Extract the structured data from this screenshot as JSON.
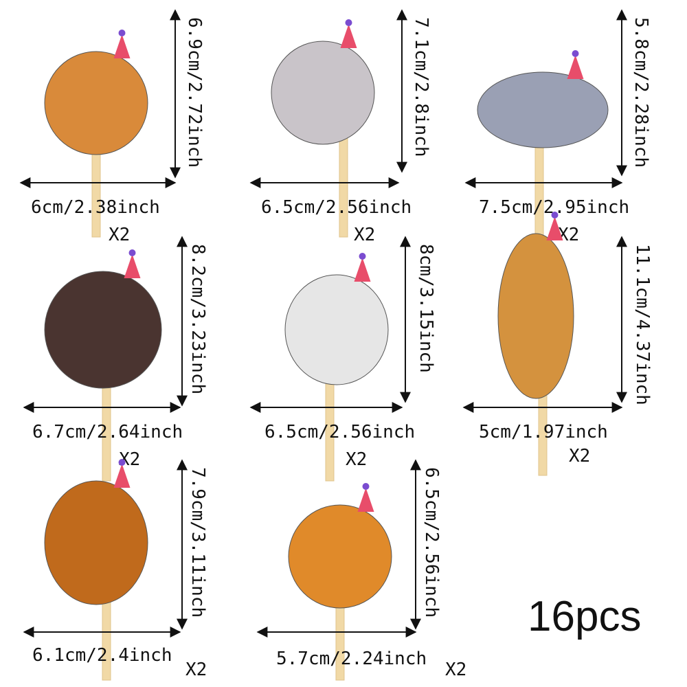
{
  "items": [
    {
      "width_label": "6cm/2.38inch",
      "height_label": "6.9cm/2.72inch",
      "quantity": "X2"
    },
    {
      "width_label": "6.5cm/2.56inch",
      "height_label": "7.1cm/2.8inch",
      "quantity": "X2"
    },
    {
      "width_label": "7.5cm/2.95inch",
      "height_label": "5.8cm/2.28inch",
      "quantity": "X2"
    },
    {
      "width_label": "6.7cm/2.64inch",
      "height_label": "8.2cm/3.23inch",
      "quantity": "X2"
    },
    {
      "width_label": "6.5cm/2.56inch",
      "height_label": "8cm/3.15inch",
      "quantity": "X2"
    },
    {
      "width_label": "5cm/1.97inch",
      "height_label": "11.1cm/4.37inch",
      "quantity": "X2"
    },
    {
      "width_label": "6.1cm/2.4inch",
      "height_label": "7.9cm/3.11inch",
      "quantity": "X2"
    },
    {
      "width_label": "5.7cm/2.24inch",
      "height_label": "6.5cm/2.56inch",
      "quantity": "X2"
    }
  ],
  "total": "16pcs"
}
